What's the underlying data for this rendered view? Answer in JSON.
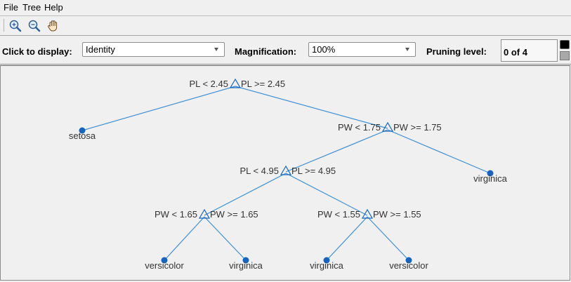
{
  "menu": {
    "items": [
      {
        "label": "File"
      },
      {
        "label": "Tree"
      },
      {
        "label": "Help"
      }
    ]
  },
  "toolbar": {
    "tools": [
      {
        "icon": "zoom-in-icon"
      },
      {
        "icon": "zoom-out-icon"
      },
      {
        "icon": "pan-hand-icon"
      }
    ]
  },
  "controls": {
    "display_label": "Click to display:",
    "display_value": "Identity",
    "magnification_label": "Magnification:",
    "magnification_value": "100%",
    "pruning_label": "Pruning level:",
    "pruning_value": "0 of 4"
  },
  "tree": {
    "node_color": "#1565c0",
    "line_color": "#3d8fd6",
    "nodes": [
      {
        "id": "n1",
        "type": "branch",
        "left_label": "PL < 2.45",
        "right_label": "PL >= 2.45"
      },
      {
        "id": "n2",
        "type": "leaf",
        "label": "setosa"
      },
      {
        "id": "n3",
        "type": "branch",
        "left_label": "PW < 1.75",
        "right_label": "PW >= 1.75"
      },
      {
        "id": "n4",
        "type": "branch",
        "left_label": "PL < 4.95",
        "right_label": "PL >= 4.95"
      },
      {
        "id": "n5",
        "type": "leaf",
        "label": "virginica"
      },
      {
        "id": "n6",
        "type": "branch",
        "left_label": "PW < 1.65",
        "right_label": "PW >= 1.65"
      },
      {
        "id": "n7",
        "type": "branch",
        "left_label": "PW < 1.55",
        "right_label": "PW >= 1.55"
      },
      {
        "id": "n8",
        "type": "leaf",
        "label": "versicolor"
      },
      {
        "id": "n9",
        "type": "leaf",
        "label": "virginica"
      },
      {
        "id": "n10",
        "type": "leaf",
        "label": "virginica"
      },
      {
        "id": "n11",
        "type": "leaf",
        "label": "versicolor"
      }
    ]
  }
}
